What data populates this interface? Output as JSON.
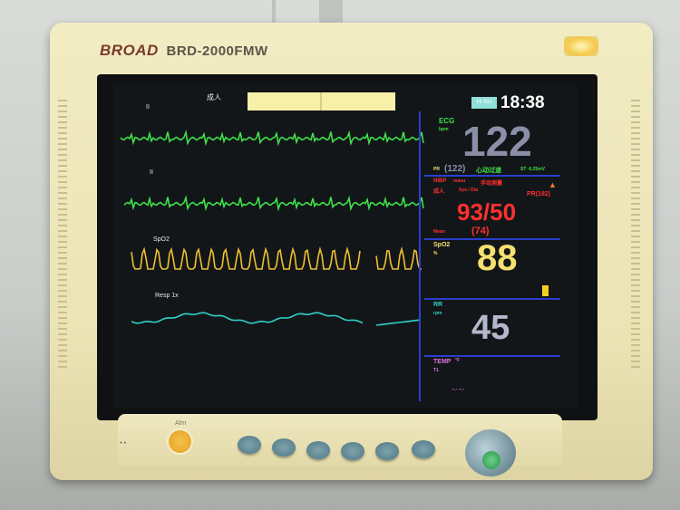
{
  "device": {
    "brand_logo": "BROAD",
    "model": "BRD-2000FMW"
  },
  "screen": {
    "patient_type": "成人",
    "mode_badge": "HI NIJ",
    "clock": "18:38",
    "waveforms": [
      {
        "label": "II",
        "color": "#3fe04a"
      },
      {
        "label": "II",
        "color": "#3fe04a"
      },
      {
        "label": "SpO2",
        "color": "#f0c030"
      },
      {
        "label": "Resp 1x",
        "color": "#2fd0c8"
      }
    ],
    "ecg": {
      "label": "ECG",
      "unit": "bpm",
      "value": "122",
      "pr": "(122)",
      "pr_label": "PR",
      "status": "心动过速",
      "st": "ST -0.25mV",
      "color": "#3fe04a"
    },
    "nibp": {
      "label": "NIBP",
      "mode": "manu",
      "status": "手动测量",
      "patient": "成人",
      "unit": "Sys / Dia",
      "value": "93/50",
      "mean_label": "Mean",
      "mean": "(74)",
      "pr": "PR(182)",
      "alarm_icon": "warning-triangle-icon",
      "color": "#ff3030"
    },
    "spo2": {
      "label": "SpO2",
      "unit": "%",
      "value": "88",
      "color": "#f6e070"
    },
    "resp": {
      "label": "RR",
      "unit": "rpm",
      "value": "45",
      "color": "#2fd0c8"
    },
    "temp": {
      "label": "TEMP",
      "unit": "°F",
      "channel": "T1",
      "value": "--.- --.-",
      "color": "#e070e0"
    }
  },
  "controls": {
    "power_led": "power-led-icon",
    "alarm_button_label": "Alm"
  }
}
